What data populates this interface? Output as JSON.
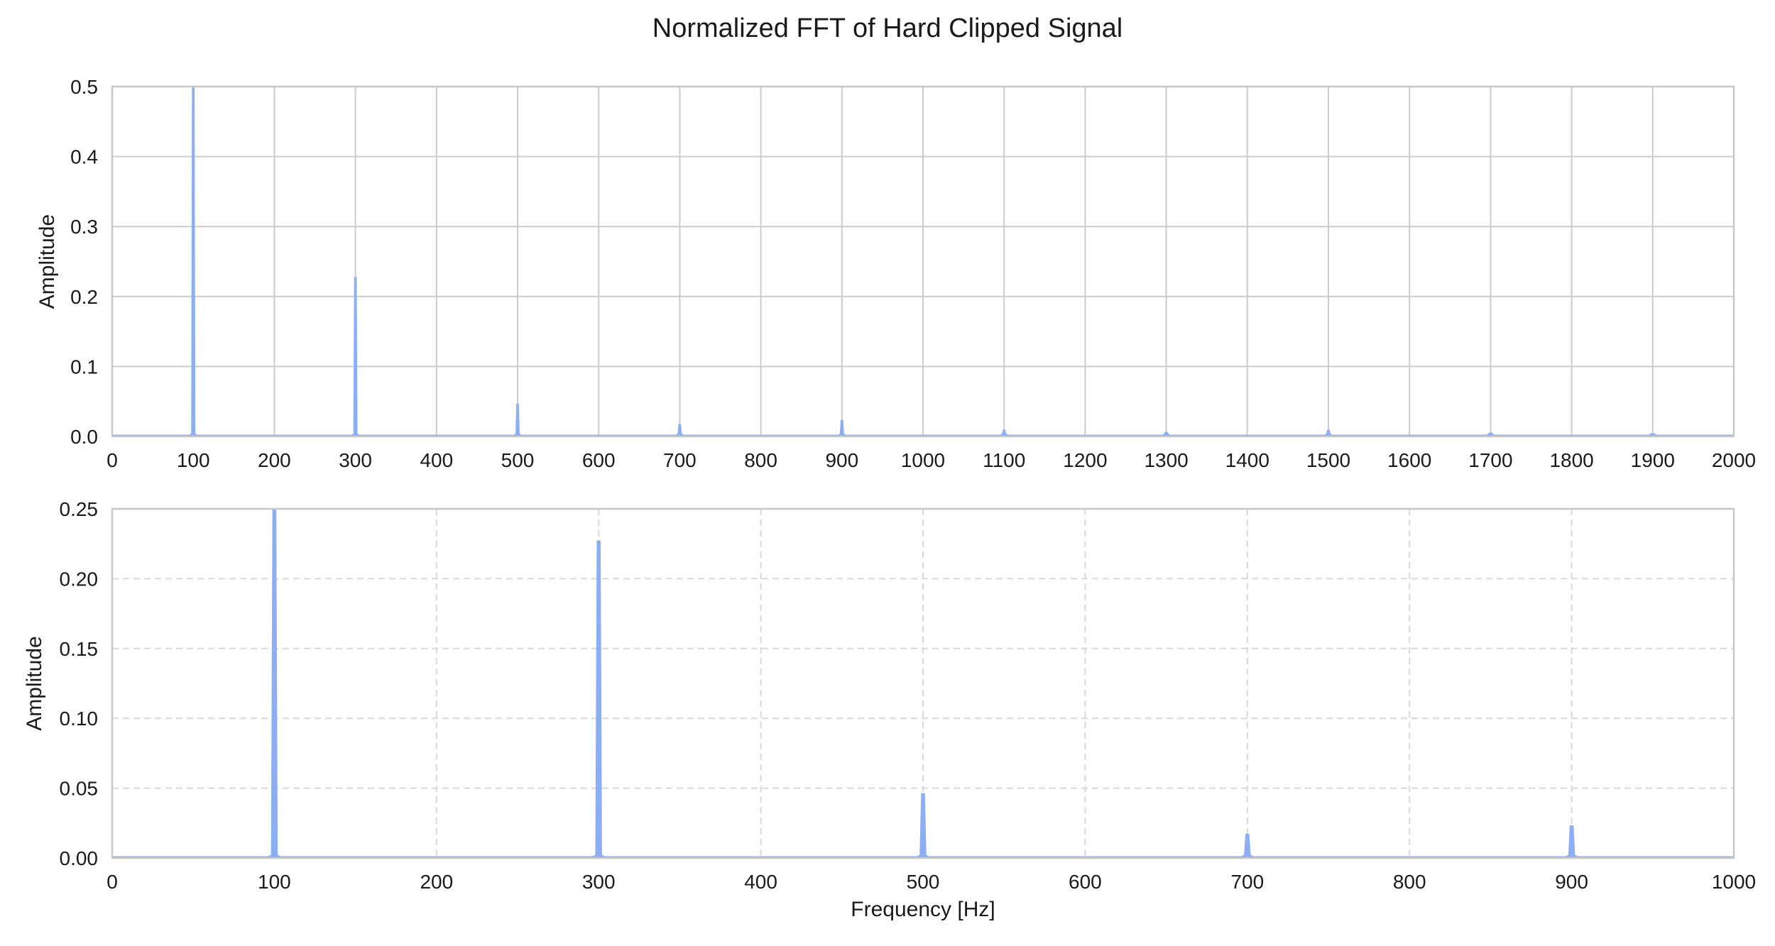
{
  "title": "Normalized FFT of Hard Clipped Signal",
  "chart_data": [
    {
      "type": "line",
      "xlabel": "",
      "ylabel": "Amplitude",
      "xlim": [
        0,
        2000
      ],
      "ylim": [
        0,
        0.5
      ],
      "xticks": [
        0,
        100,
        200,
        300,
        400,
        500,
        600,
        700,
        800,
        900,
        1000,
        1100,
        1200,
        1300,
        1400,
        1500,
        1600,
        1700,
        1800,
        1900,
        2000
      ],
      "xtick_labels": [
        "0",
        "100",
        "200",
        "300",
        "400",
        "500",
        "600",
        "700",
        "800",
        "900",
        "1000",
        "1100",
        "1200",
        "1300",
        "1400",
        "1500",
        "1600",
        "1700",
        "1800",
        "1900",
        "2000"
      ],
      "yticks": [
        0,
        0.1,
        0.2,
        0.3,
        0.4,
        0.5
      ],
      "ytick_labels": [
        "0.0",
        "0.1",
        "0.2",
        "0.3",
        "0.4",
        "0.5"
      ],
      "grid": "solid",
      "series": [
        {
          "color": "#8caef5",
          "peaks": [
            {
              "x": 100,
              "y": 0.5
            },
            {
              "x": 300,
              "y": 0.227
            },
            {
              "x": 500,
              "y": 0.046
            },
            {
              "x": 700,
              "y": 0.017
            },
            {
              "x": 900,
              "y": 0.023
            },
            {
              "x": 1100,
              "y": 0.009
            },
            {
              "x": 1300,
              "y": 0.006
            },
            {
              "x": 1500,
              "y": 0.009
            },
            {
              "x": 1700,
              "y": 0.005
            },
            {
              "x": 1900,
              "y": 0.003
            }
          ]
        }
      ]
    },
    {
      "type": "line",
      "xlabel": "Frequency [Hz]",
      "ylabel": "Amplitude",
      "xlim": [
        0,
        1000
      ],
      "ylim": [
        0,
        0.25
      ],
      "xticks": [
        0,
        100,
        200,
        300,
        400,
        500,
        600,
        700,
        800,
        900,
        1000
      ],
      "xtick_labels": [
        "0",
        "100",
        "200",
        "300",
        "400",
        "500",
        "600",
        "700",
        "800",
        "900",
        "1000"
      ],
      "yticks": [
        0,
        0.05,
        0.1,
        0.15,
        0.2,
        0.25
      ],
      "ytick_labels": [
        "0.00",
        "0.05",
        "0.10",
        "0.15",
        "0.20",
        "0.25"
      ],
      "grid": "dashed",
      "series": [
        {
          "color": "#8caef5",
          "peaks": [
            {
              "x": 100,
              "y": 0.25
            },
            {
              "x": 300,
              "y": 0.227
            },
            {
              "x": 500,
              "y": 0.046
            },
            {
              "x": 700,
              "y": 0.017
            },
            {
              "x": 900,
              "y": 0.023
            }
          ]
        }
      ]
    }
  ]
}
